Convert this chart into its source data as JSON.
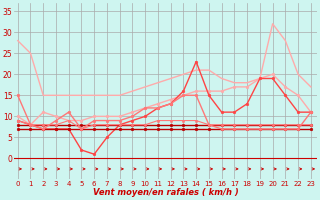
{
  "xlabel": "Vent moyen/en rafales ( km/h )",
  "bg_color": "#cef5f0",
  "grid_color": "#aaaaaa",
  "x_ticks": [
    0,
    1,
    2,
    3,
    4,
    5,
    6,
    7,
    8,
    9,
    10,
    11,
    12,
    13,
    14,
    15,
    16,
    17,
    18,
    19,
    20,
    21,
    22,
    23
  ],
  "ylim": [
    -5,
    37
  ],
  "xlim": [
    -0.3,
    23.5
  ],
  "y_ticks": [
    0,
    5,
    10,
    15,
    20,
    25,
    30,
    35
  ],
  "series": [
    {
      "x": [
        0,
        1,
        2,
        3,
        4,
        5,
        6,
        7,
        8,
        9,
        10,
        11,
        12,
        13,
        14,
        15,
        16,
        17,
        18,
        19,
        20,
        21,
        22,
        23
      ],
      "y": [
        28,
        25,
        15,
        15,
        15,
        15,
        15,
        15,
        15,
        16,
        17,
        18,
        19,
        20,
        21,
        21,
        19,
        18,
        18,
        19,
        32,
        28,
        20,
        17
      ],
      "color": "#ffaaaa",
      "lw": 1.0,
      "marker": null,
      "ms": 0
    },
    {
      "x": [
        0,
        1,
        2,
        3,
        4,
        5,
        6,
        7,
        8,
        9,
        10,
        11,
        12,
        13,
        14,
        15,
        16,
        17,
        18,
        19,
        20,
        21,
        22,
        23
      ],
      "y": [
        10,
        8,
        11,
        10,
        9,
        9,
        10,
        10,
        10,
        11,
        12,
        13,
        14,
        15,
        16,
        16,
        16,
        17,
        17,
        19,
        20,
        17,
        15,
        11
      ],
      "color": "#ffaaaa",
      "lw": 1.0,
      "marker": "o",
      "ms": 2.0
    },
    {
      "x": [
        0,
        1,
        2,
        3,
        4,
        5,
        6,
        7,
        8,
        9,
        10,
        11,
        12,
        13,
        14,
        15,
        16,
        17,
        18,
        19,
        20,
        21,
        22,
        23
      ],
      "y": [
        9,
        8,
        7,
        7,
        7,
        2,
        1,
        5,
        8,
        9,
        10,
        12,
        13,
        16,
        23,
        15,
        11,
        11,
        13,
        19,
        19,
        15,
        11,
        11
      ],
      "color": "#ff4444",
      "lw": 1.0,
      "marker": "o",
      "ms": 2.0
    },
    {
      "x": [
        0,
        1,
        2,
        3,
        4,
        5,
        6,
        7,
        8,
        9,
        10,
        11,
        12,
        13,
        14,
        15,
        16,
        17,
        18,
        19,
        20,
        21,
        22,
        23
      ],
      "y": [
        8,
        8,
        8,
        8,
        8,
        8,
        8,
        8,
        8,
        8,
        8,
        8,
        8,
        8,
        8,
        8,
        8,
        8,
        8,
        8,
        8,
        8,
        8,
        8
      ],
      "color": "#bb0000",
      "lw": 1.0,
      "marker": "o",
      "ms": 2.0
    },
    {
      "x": [
        0,
        1,
        2,
        3,
        4,
        5,
        6,
        7,
        8,
        9,
        10,
        11,
        12,
        13,
        14,
        15,
        16,
        17,
        18,
        19,
        20,
        21,
        22,
        23
      ],
      "y": [
        7,
        7,
        7,
        7,
        7,
        7,
        7,
        7,
        7,
        7,
        7,
        7,
        7,
        7,
        7,
        7,
        7,
        7,
        7,
        7,
        7,
        7,
        7,
        7
      ],
      "color": "#bb0000",
      "lw": 1.0,
      "marker": "o",
      "ms": 2.0
    },
    {
      "x": [
        0,
        1,
        2,
        3,
        4,
        5,
        6,
        7,
        8,
        9,
        10,
        11,
        12,
        13,
        14,
        15,
        16,
        17,
        18,
        19,
        20,
        21,
        22,
        23
      ],
      "y": [
        15,
        8,
        7,
        9,
        11,
        7,
        9,
        9,
        9,
        10,
        12,
        12,
        13,
        15,
        15,
        8,
        7,
        7,
        7,
        7,
        7,
        7,
        7,
        11
      ],
      "color": "#ff7777",
      "lw": 1.0,
      "marker": "o",
      "ms": 2.0
    },
    {
      "x": [
        0,
        1,
        2,
        3,
        4,
        5,
        6,
        7,
        8,
        9,
        10,
        11,
        12,
        13,
        14,
        15,
        16,
        17,
        18,
        19,
        20,
        21,
        22,
        23
      ],
      "y": [
        9,
        8,
        8,
        8,
        9,
        7,
        8,
        8,
        8,
        8,
        8,
        9,
        9,
        9,
        9,
        8,
        8,
        8,
        8,
        8,
        8,
        8,
        8,
        8
      ],
      "color": "#ff7777",
      "lw": 0.8,
      "marker": "o",
      "ms": 1.8
    }
  ],
  "tick_color": "#cc0000",
  "label_color": "#cc0000",
  "arrow_color": "#cc0000"
}
